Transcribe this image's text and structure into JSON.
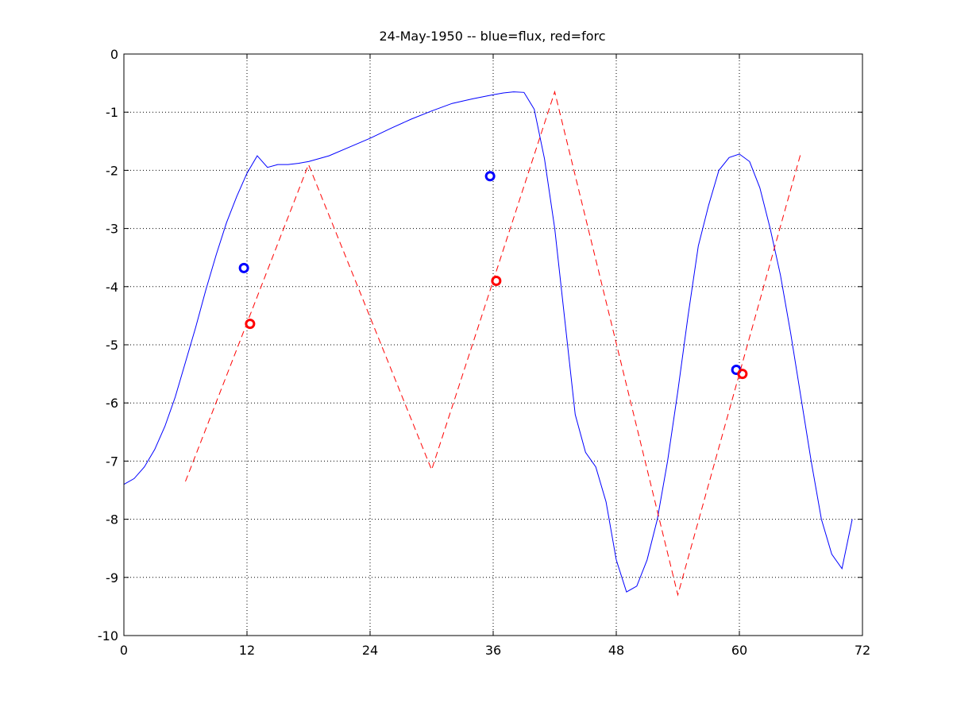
{
  "chart_data": {
    "type": "line",
    "title": "24-May-1950 -- blue=flux, red=forc",
    "xlabel": "",
    "ylabel": "",
    "xlim": [
      0,
      72
    ],
    "ylim": [
      -10,
      0
    ],
    "xticks": [
      0,
      12,
      24,
      36,
      48,
      60,
      72
    ],
    "yticks": [
      0,
      -1,
      -2,
      -3,
      -4,
      -5,
      -6,
      -7,
      -8,
      -9,
      -10
    ],
    "grid": true,
    "colors": {
      "flux": "#0000ff",
      "forc": "#ff0000",
      "axes": "#000000",
      "grid": "#000000"
    },
    "series": [
      {
        "style": "solid",
        "color": "#0000ff",
        "x": [
          0,
          1,
          2,
          3,
          4,
          5,
          6,
          7,
          8,
          9,
          10,
          11,
          12,
          13,
          14,
          15,
          16,
          17,
          18,
          20,
          22,
          24,
          26,
          28,
          30,
          32,
          34,
          36,
          37,
          38,
          39,
          40,
          41,
          42,
          43,
          44,
          45,
          46,
          47,
          48,
          49,
          50,
          51,
          52,
          53,
          54,
          55,
          56,
          57,
          58,
          59,
          60,
          61,
          62,
          63,
          64,
          65,
          66,
          67,
          68,
          69,
          70,
          71
        ],
        "y": [
          -7.4,
          -7.3,
          -7.1,
          -6.8,
          -6.4,
          -5.9,
          -5.3,
          -4.7,
          -4.05,
          -3.45,
          -2.9,
          -2.45,
          -2.05,
          -1.75,
          -1.95,
          -1.9,
          -1.9,
          -1.88,
          -1.85,
          -1.75,
          -1.6,
          -1.45,
          -1.28,
          -1.12,
          -0.98,
          -0.85,
          -0.77,
          -0.7,
          -0.67,
          -0.65,
          -0.66,
          -0.95,
          -1.8,
          -3.0,
          -4.6,
          -6.2,
          -6.85,
          -7.1,
          -7.7,
          -8.7,
          -9.25,
          -9.15,
          -8.7,
          -8.0,
          -7.0,
          -5.8,
          -4.5,
          -3.3,
          -2.6,
          -2.0,
          -1.78,
          -1.72,
          -1.85,
          -2.3,
          -3.0,
          -3.8,
          -4.8,
          -5.9,
          -7.0,
          -8.0,
          -8.6,
          -8.85,
          -8.0
        ],
        "markers": [
          {
            "x": 11.7,
            "y": -3.68
          },
          {
            "x": 35.7,
            "y": -2.1
          },
          {
            "x": 59.7,
            "y": -5.43
          }
        ]
      },
      {
        "style": "dashed",
        "color": "#ff0000",
        "x": [
          6,
          18,
          30,
          42,
          54,
          66
        ],
        "y": [
          -7.35,
          -1.9,
          -7.15,
          -0.65,
          -9.3,
          -1.7
        ],
        "markers": [
          {
            "x": 12.3,
            "y": -4.64
          },
          {
            "x": 36.3,
            "y": -3.9
          },
          {
            "x": 60.3,
            "y": -5.5
          }
        ]
      }
    ]
  }
}
